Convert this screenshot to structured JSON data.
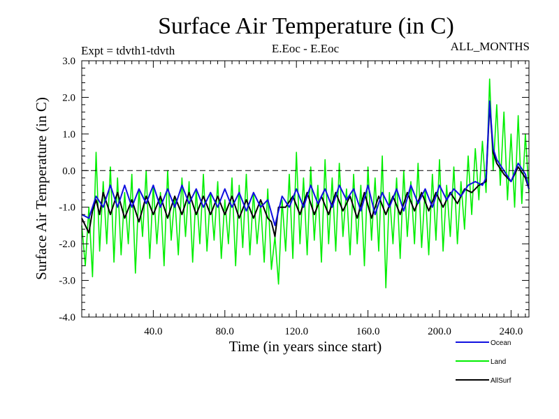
{
  "chart_data": {
    "type": "line",
    "title": "Surface Air Temperature (in C)",
    "subtitle_left": "Expt = tdvth1-tdvth",
    "subtitle_center": "E.Eoc - E.Eoc",
    "subtitle_right": "ALL_MONTHS",
    "xlabel": "Time (in years since start)",
    "ylabel": "Surface Air Temperature (in C)",
    "xlim": [
      0,
      250
    ],
    "ylim": [
      -4.0,
      3.0
    ],
    "x_ticks": [
      40,
      80,
      120,
      160,
      200,
      240
    ],
    "x_tick_labels": [
      "40.0",
      "80.0",
      "120.0",
      "160.0",
      "200.0",
      "240.0"
    ],
    "y_ticks": [
      -4,
      -3,
      -2,
      -1,
      0,
      1,
      2,
      3
    ],
    "y_tick_labels": [
      "-4.0",
      "-3.0",
      "-2.0",
      "-1.0",
      "0.0",
      "1.0",
      "2.0",
      "3.0"
    ],
    "reference_line": 0.0,
    "series": [
      {
        "name": "Ocean",
        "color": "#1010e0",
        "x": [
          0,
          4,
          8,
          12,
          16,
          20,
          24,
          28,
          32,
          36,
          40,
          44,
          48,
          52,
          56,
          60,
          64,
          68,
          72,
          76,
          80,
          84,
          88,
          92,
          96,
          100,
          104,
          108,
          112,
          116,
          120,
          124,
          128,
          132,
          136,
          140,
          144,
          148,
          152,
          156,
          160,
          164,
          168,
          172,
          176,
          180,
          184,
          188,
          192,
          196,
          200,
          204,
          208,
          212,
          216,
          220,
          224,
          226,
          228,
          230,
          232,
          236,
          240,
          244,
          248,
          250
        ],
        "values": [
          -1.2,
          -1.3,
          -0.7,
          -1.0,
          -0.4,
          -1.0,
          -0.4,
          -1.0,
          -0.5,
          -0.9,
          -0.4,
          -1.0,
          -0.5,
          -1.0,
          -0.4,
          -0.9,
          -0.5,
          -1.0,
          -0.6,
          -1.0,
          -0.5,
          -1.0,
          -0.6,
          -1.1,
          -0.6,
          -1.0,
          -0.8,
          -1.5,
          -0.7,
          -1.0,
          -0.5,
          -1.0,
          -0.4,
          -0.9,
          -0.5,
          -1.0,
          -0.4,
          -0.8,
          -0.5,
          -1.1,
          -0.4,
          -1.2,
          -0.6,
          -1.0,
          -0.5,
          -1.1,
          -0.4,
          -0.9,
          -0.5,
          -1.0,
          -0.4,
          -0.8,
          -0.5,
          -0.7,
          -0.4,
          -0.3,
          -0.4,
          -0.2,
          1.9,
          0.6,
          0.3,
          0.0,
          -0.3,
          0.2,
          -0.1,
          -0.5
        ]
      },
      {
        "name": "Land",
        "color": "#00ee00",
        "x": [
          0,
          2,
          4,
          6,
          8,
          10,
          12,
          14,
          16,
          18,
          20,
          22,
          24,
          26,
          28,
          30,
          32,
          34,
          36,
          38,
          40,
          42,
          44,
          46,
          48,
          50,
          52,
          54,
          56,
          58,
          60,
          62,
          64,
          66,
          68,
          70,
          72,
          74,
          76,
          78,
          80,
          82,
          84,
          86,
          88,
          90,
          92,
          94,
          96,
          98,
          100,
          102,
          104,
          106,
          108,
          110,
          112,
          114,
          116,
          118,
          120,
          122,
          124,
          126,
          128,
          130,
          132,
          134,
          136,
          138,
          140,
          142,
          144,
          146,
          148,
          150,
          152,
          154,
          156,
          158,
          160,
          162,
          164,
          166,
          168,
          170,
          172,
          174,
          176,
          178,
          180,
          182,
          184,
          186,
          188,
          190,
          192,
          194,
          196,
          198,
          200,
          202,
          204,
          206,
          208,
          210,
          212,
          214,
          216,
          218,
          220,
          222,
          224,
          226,
          228,
          230,
          232,
          234,
          236,
          238,
          240,
          242,
          244,
          246,
          248,
          250
        ],
        "values": [
          -1.5,
          -2.6,
          -1.0,
          -2.9,
          0.5,
          -2.2,
          -0.3,
          -2.0,
          0.1,
          -2.5,
          -0.2,
          -2.3,
          -0.6,
          -2.0,
          -0.1,
          -2.8,
          -0.5,
          -1.8,
          0.0,
          -2.4,
          -0.4,
          -2.0,
          -0.6,
          -2.6,
          0.0,
          -1.9,
          -0.7,
          -2.3,
          -0.2,
          -1.8,
          -0.3,
          -2.5,
          -0.5,
          -2.0,
          -0.1,
          -2.2,
          -0.6,
          -1.9,
          -0.3,
          -2.4,
          -0.8,
          -2.0,
          -0.2,
          -2.6,
          -0.4,
          -2.1,
          -0.1,
          -2.3,
          -0.6,
          -2.0,
          -0.9,
          -2.5,
          -0.5,
          -2.7,
          -1.8,
          -3.1,
          -0.8,
          -2.2,
          -0.1,
          -2.4,
          0.5,
          -2.0,
          -0.2,
          -2.3,
          0.1,
          -1.9,
          -0.4,
          -2.5,
          0.3,
          -2.0,
          -0.2,
          -2.2,
          0.2,
          -1.8,
          -0.5,
          -2.3,
          -0.1,
          -2.0,
          -0.4,
          -2.6,
          0.1,
          -1.9,
          -0.2,
          -2.2,
          0.4,
          -3.2,
          -0.6,
          -2.0,
          -0.2,
          -2.4,
          0.0,
          -1.8,
          -0.3,
          -2.0,
          0.2,
          -2.1,
          -0.5,
          -2.3,
          -0.1,
          -1.9,
          0.3,
          -2.2,
          -0.4,
          -1.8,
          0.1,
          -2.0,
          -0.3,
          -1.6,
          0.4,
          -1.2,
          0.6,
          -0.8,
          0.8,
          -0.6,
          2.5,
          0.0,
          1.8,
          -0.4,
          1.6,
          -0.8,
          1.0,
          -1.0,
          1.5,
          -0.9,
          1.0,
          -0.6
        ]
      },
      {
        "name": "AllSurf",
        "color": "#000000",
        "x": [
          0,
          2,
          4,
          6,
          8,
          10,
          12,
          16,
          20,
          24,
          28,
          32,
          36,
          40,
          44,
          48,
          52,
          56,
          60,
          64,
          68,
          72,
          76,
          80,
          84,
          88,
          92,
          96,
          100,
          104,
          106,
          108,
          110,
          114,
          118,
          122,
          126,
          130,
          134,
          138,
          142,
          146,
          150,
          154,
          158,
          162,
          166,
          170,
          174,
          178,
          182,
          186,
          190,
          194,
          198,
          202,
          206,
          210,
          214,
          218,
          222,
          226,
          228,
          230,
          232,
          236,
          240,
          244,
          248,
          250
        ],
        "values": [
          -1.3,
          -1.5,
          -1.7,
          -1.1,
          -0.8,
          -1.2,
          -0.6,
          -1.2,
          -0.6,
          -1.3,
          -0.8,
          -1.4,
          -0.7,
          -1.2,
          -0.7,
          -1.3,
          -0.7,
          -1.2,
          -0.6,
          -1.2,
          -0.7,
          -1.2,
          -0.7,
          -1.2,
          -0.7,
          -1.3,
          -0.8,
          -1.3,
          -0.8,
          -1.3,
          -1.4,
          -1.8,
          -1.0,
          -1.0,
          -0.7,
          -1.2,
          -0.6,
          -1.2,
          -0.7,
          -1.2,
          -0.6,
          -1.1,
          -0.7,
          -1.3,
          -0.6,
          -1.3,
          -0.7,
          -1.2,
          -0.7,
          -1.2,
          -0.6,
          -1.1,
          -0.6,
          -1.1,
          -0.6,
          -1.0,
          -0.6,
          -0.9,
          -0.5,
          -0.6,
          -0.4,
          -0.3,
          1.8,
          0.5,
          0.2,
          -0.1,
          -0.3,
          0.1,
          -0.2,
          -0.5
        ]
      }
    ],
    "legend": [
      {
        "name": "Ocean",
        "color": "#1010e0"
      },
      {
        "name": "Land",
        "color": "#00ee00"
      },
      {
        "name": "AllSurf",
        "color": "#000000"
      }
    ],
    "legend_position": "bottom-right"
  }
}
